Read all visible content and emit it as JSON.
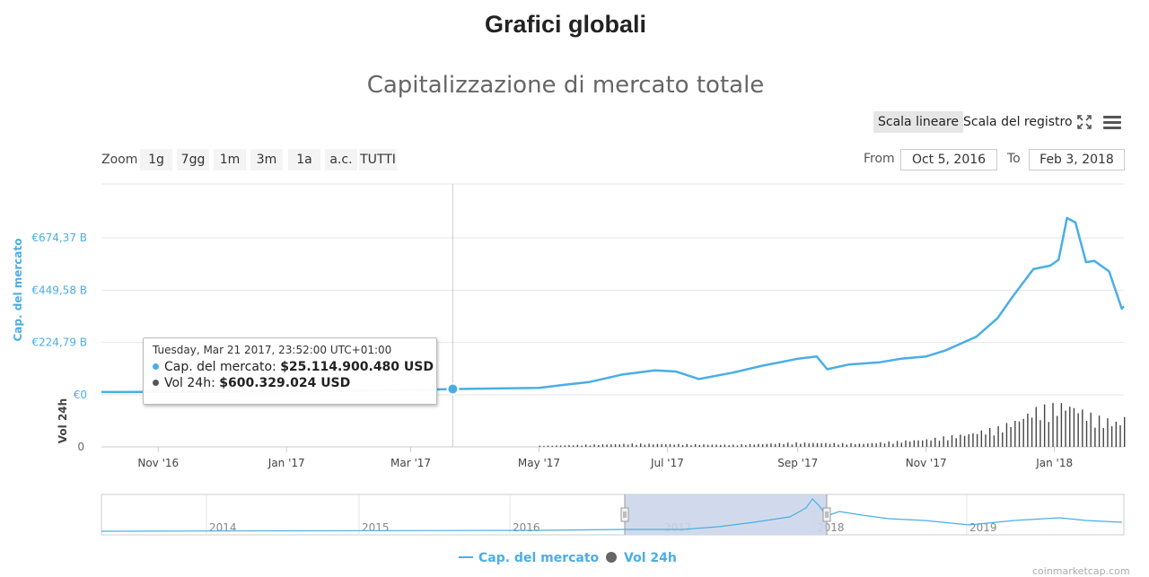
{
  "page": {
    "title": "Grafici globali"
  },
  "toolbar": {
    "scale_linear": "Scala lineare",
    "scale_log": "Scala del registro",
    "fullscreen_icon": "fullscreen-icon",
    "menu_icon": "hamburger-menu-icon"
  },
  "zoom": {
    "label": "Zoom",
    "buttons": [
      "1g",
      "7gg",
      "1m",
      "3m",
      "1a",
      "a.c.",
      "TUTTI"
    ]
  },
  "range": {
    "from_label": "From",
    "from_value": "Oct 5, 2016",
    "to_label": "To",
    "to_value": "Feb 3, 2018"
  },
  "tooltip": {
    "date": "Tuesday, Mar 21 2017, 23:52:00 UTC+01:00",
    "cap_label": "Cap. del mercato:",
    "cap_value": "$25.114.900.480 USD",
    "vol_label": "Vol 24h:",
    "vol_value": "$600.329.024 USD"
  },
  "legend": [
    {
      "name": "Cap. del mercato",
      "color": "#4aaee5"
    },
    {
      "name": "Vol 24h",
      "color": "#666666"
    }
  ],
  "colors": {
    "cap": "#4aaee5",
    "vol": "#444444",
    "navigator_fill": "#ccd6ea"
  },
  "credit": "coinmarketcap.com",
  "chart_data": {
    "type": "line",
    "title": "Capitalizzazione di mercato totale",
    "ylabel": "Cap. del mercato",
    "y2label": "Vol 24h",
    "y_ticks": [
      "€674,37 B",
      "€449,58 B",
      "€224,79 B",
      "€0"
    ],
    "y_tick_values": [
      674.37,
      449.58,
      224.79,
      0
    ],
    "vol_ticks": [
      "0"
    ],
    "x_ticks": [
      "Nov '16",
      "Jan '17",
      "Mar '17",
      "May '17",
      "Jul '17",
      "Sep '17",
      "Nov '17",
      "Jan '18"
    ],
    "xlim": [
      "2016-10-05",
      "2018-02-03"
    ],
    "ylim": [
      0,
      900
    ],
    "crosshair_date": "2017-03-21",
    "series": [
      {
        "name": "Cap. del mercato",
        "unit": "B",
        "points": [
          [
            "2016-10-05",
            12
          ],
          [
            "2016-11-01",
            13
          ],
          [
            "2016-12-01",
            13
          ],
          [
            "2017-01-01",
            15
          ],
          [
            "2017-02-01",
            17
          ],
          [
            "2017-03-01",
            20
          ],
          [
            "2017-03-21",
            25
          ],
          [
            "2017-04-15",
            28
          ],
          [
            "2017-05-01",
            30
          ],
          [
            "2017-05-15",
            45
          ],
          [
            "2017-05-25",
            55
          ],
          [
            "2017-06-10",
            88
          ],
          [
            "2017-06-25",
            105
          ],
          [
            "2017-07-05",
            100
          ],
          [
            "2017-07-16",
            68
          ],
          [
            "2017-08-01",
            95
          ],
          [
            "2017-08-15",
            125
          ],
          [
            "2017-09-01",
            155
          ],
          [
            "2017-09-10",
            165
          ],
          [
            "2017-09-15",
            110
          ],
          [
            "2017-09-25",
            130
          ],
          [
            "2017-10-10",
            140
          ],
          [
            "2017-10-20",
            155
          ],
          [
            "2017-11-01",
            165
          ],
          [
            "2017-11-10",
            190
          ],
          [
            "2017-11-25",
            250
          ],
          [
            "2017-12-05",
            330
          ],
          [
            "2017-12-12",
            420
          ],
          [
            "2017-12-22",
            540
          ],
          [
            "2017-12-30",
            555
          ],
          [
            "2018-01-03",
            580
          ],
          [
            "2018-01-07",
            760
          ],
          [
            "2018-01-11",
            740
          ],
          [
            "2018-01-16",
            570
          ],
          [
            "2018-01-20",
            575
          ],
          [
            "2018-01-27",
            530
          ],
          [
            "2018-02-02",
            370
          ],
          [
            "2018-02-03",
            380
          ]
        ]
      },
      {
        "name": "Vol 24h",
        "unit": "B",
        "points": [
          [
            "2017-05-01",
            1
          ],
          [
            "2017-06-15",
            3
          ],
          [
            "2017-08-01",
            2
          ],
          [
            "2017-09-01",
            4
          ],
          [
            "2017-10-01",
            3
          ],
          [
            "2017-11-01",
            7
          ],
          [
            "2017-11-20",
            12
          ],
          [
            "2017-12-05",
            18
          ],
          [
            "2017-12-15",
            26
          ],
          [
            "2017-12-22",
            35
          ],
          [
            "2018-01-05",
            40
          ],
          [
            "2018-01-10",
            38
          ],
          [
            "2018-01-20",
            28
          ],
          [
            "2018-02-02",
            22
          ],
          [
            "2018-02-03",
            30
          ]
        ]
      }
    ],
    "navigator": {
      "years": [
        "2014",
        "2015",
        "2016",
        "2017",
        "2018",
        "2019"
      ],
      "selected_range": [
        "2016-10-05",
        "2018-02-03"
      ]
    }
  }
}
